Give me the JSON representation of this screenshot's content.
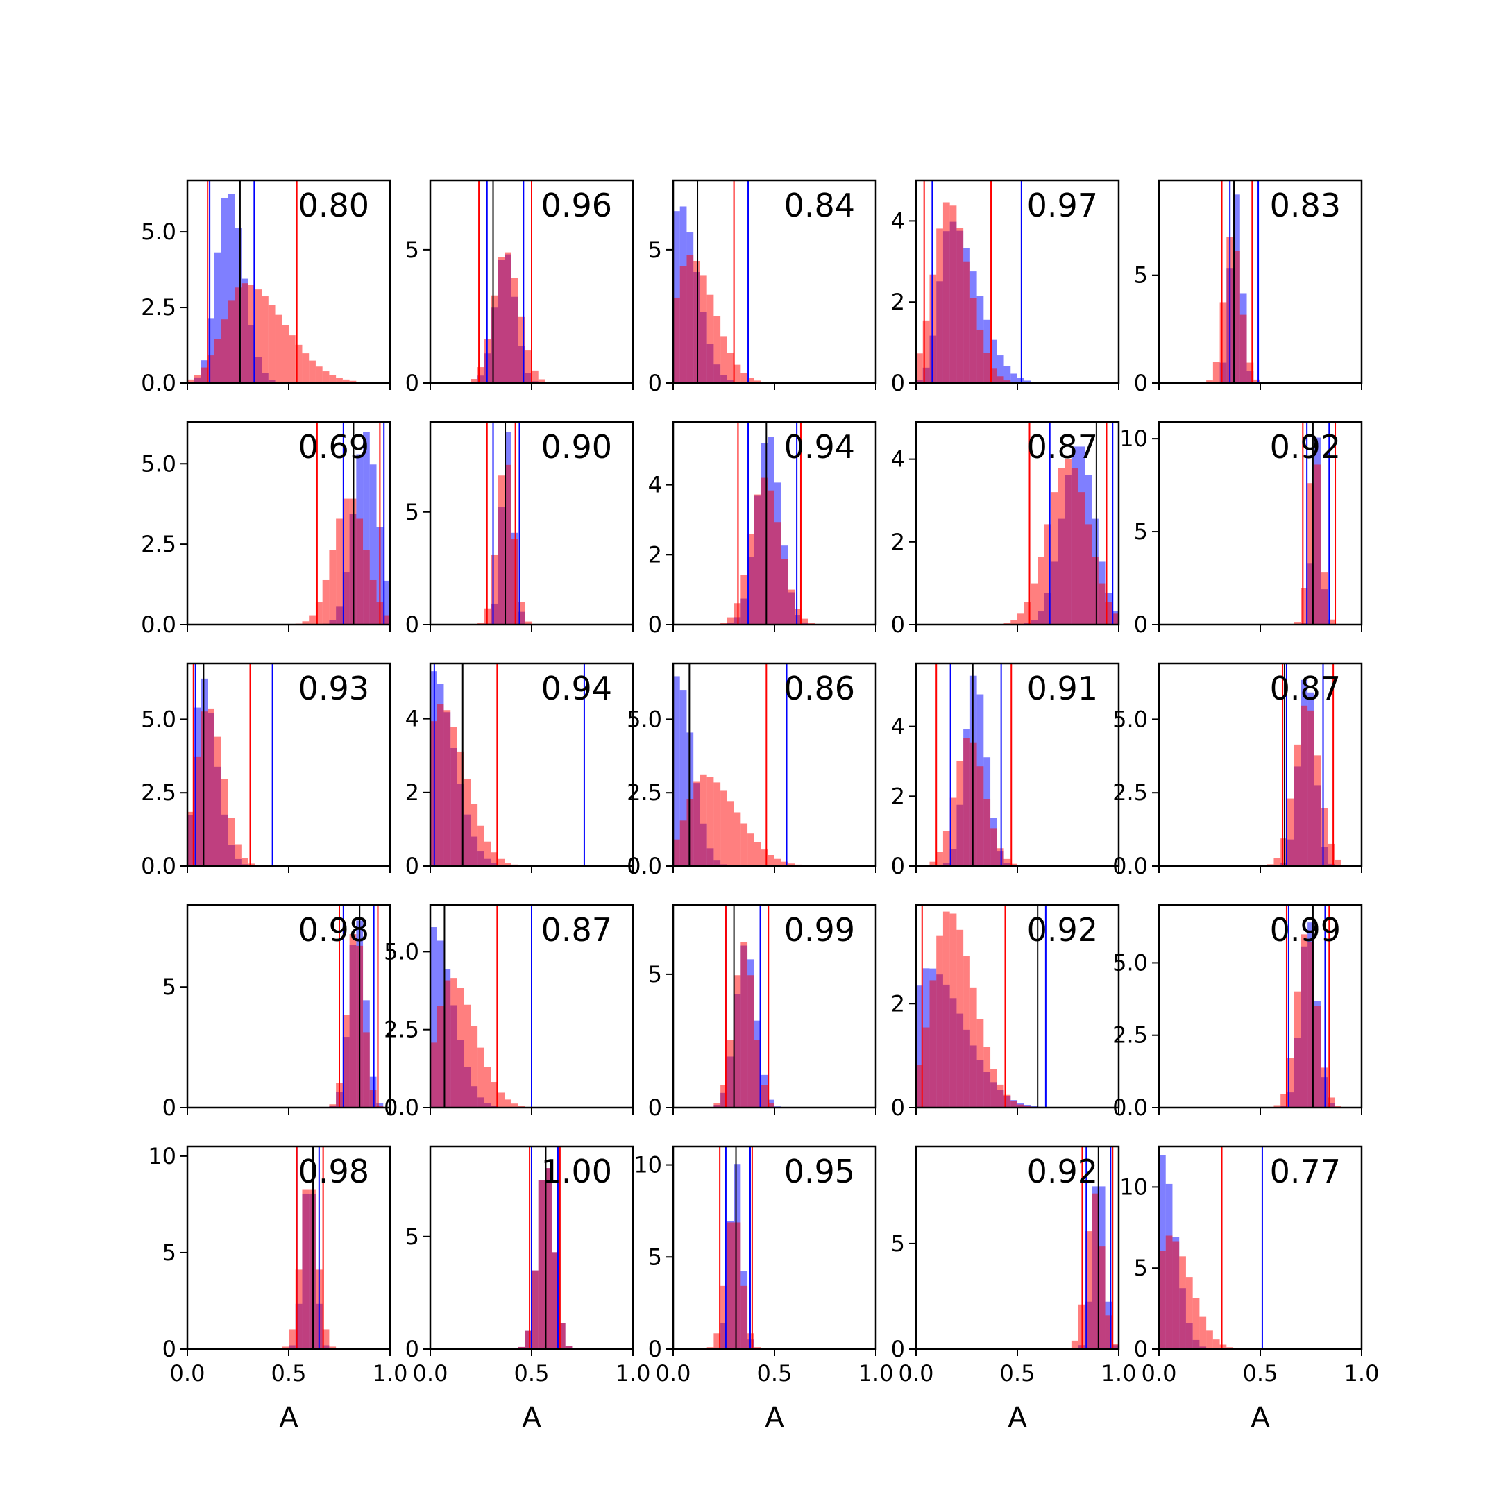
{
  "chart_data": {
    "type": "histogram-grid",
    "rows": 5,
    "cols": 5,
    "xlabel": "A",
    "xlim": [
      0,
      1
    ],
    "xticks": [
      0.0,
      0.5,
      1.0
    ],
    "xtick_labels": [
      "0.0",
      "0.5",
      "1.0"
    ],
    "colors": {
      "blue": "#0000ff",
      "red": "#ff0000",
      "black": "#000000"
    },
    "panels": [
      {
        "score": "0.80",
        "ylim": [
          0,
          6.7
        ],
        "yticks": [
          0,
          2.5,
          5
        ],
        "ytick_labels": [
          "0.0",
          "2.5",
          "5.0"
        ],
        "blue": {
          "mode": 0.2,
          "sd": 0.06,
          "skew": 0.1,
          "peak": 6.4
        },
        "red": {
          "mode": 0.28,
          "sd": 0.12,
          "skew": 0.25,
          "peak": 3.3
        },
        "lines": {
          "blue": [
            0.11,
            0.33
          ],
          "red": [
            0.1,
            0.54
          ],
          "black": 0.26
        }
      },
      {
        "score": "0.96",
        "ylim": [
          0,
          7.6
        ],
        "yticks": [
          0,
          5
        ],
        "ytick_labels": [
          "0",
          "5"
        ],
        "blue": {
          "mode": 0.37,
          "sd": 0.05,
          "skew": 0.0,
          "peak": 5.0
        },
        "red": {
          "mode": 0.37,
          "sd": 0.06,
          "skew": 0.05,
          "peak": 5.0
        },
        "lines": {
          "blue": [
            0.28,
            0.46
          ],
          "red": [
            0.24,
            0.5
          ],
          "black": 0.31
        }
      },
      {
        "score": "0.84",
        "ylim": [
          0,
          7.6
        ],
        "yticks": [
          0,
          5
        ],
        "ytick_labels": [
          "0",
          "5"
        ],
        "blue": {
          "mode": 0.03,
          "sd": 0.05,
          "skew": 0.3,
          "peak": 6.8
        },
        "red": {
          "mode": 0.08,
          "sd": 0.08,
          "skew": 0.2,
          "peak": 4.8
        },
        "lines": {
          "blue": [
            0.37
          ],
          "red": [
            0.3
          ],
          "black": 0.12
        }
      },
      {
        "score": "0.97",
        "ylim": [
          0,
          5.0
        ],
        "yticks": [
          0,
          2,
          4
        ],
        "ytick_labels": [
          "0",
          "2",
          "4"
        ],
        "blue": {
          "mode": 0.17,
          "sd": 0.07,
          "skew": 0.35,
          "peak": 4.0
        },
        "red": {
          "mode": 0.16,
          "sd": 0.08,
          "skew": 0.1,
          "peak": 4.5
        },
        "lines": {
          "blue": [
            0.08,
            0.52
          ],
          "red": [
            0.04,
            0.37
          ],
          "black": 0.0
        }
      },
      {
        "score": "0.83",
        "ylim": [
          0,
          9.4
        ],
        "yticks": [
          0,
          5
        ],
        "ytick_labels": [
          "0",
          "5"
        ],
        "blue": {
          "mode": 0.38,
          "sd": 0.03,
          "skew": 0.0,
          "peak": 8.8
        },
        "red": {
          "mode": 0.36,
          "sd": 0.04,
          "skew": 0.05,
          "peak": 7.0
        },
        "lines": {
          "blue": [
            0.35,
            0.49
          ],
          "red": [
            0.31,
            0.46
          ],
          "black": 0.37
        }
      },
      {
        "score": "0.69",
        "ylim": [
          0,
          6.3
        ],
        "yticks": [
          0,
          2.5,
          5
        ],
        "ytick_labels": [
          "0.0",
          "2.5",
          "5.0"
        ],
        "blue": {
          "mode": 0.88,
          "sd": 0.06,
          "skew": 0.0,
          "peak": 6.0
        },
        "red": {
          "mode": 0.8,
          "sd": 0.08,
          "skew": 0.0,
          "peak": 4.0
        },
        "lines": {
          "blue": [
            0.77,
            0.97
          ],
          "red": [
            0.64,
            0.95
          ],
          "black": 0.82
        }
      },
      {
        "score": "0.90",
        "ylim": [
          0,
          9.0
        ],
        "yticks": [
          0,
          5
        ],
        "ytick_labels": [
          "0",
          "5"
        ],
        "blue": {
          "mode": 0.38,
          "sd": 0.03,
          "skew": 0.0,
          "peak": 8.6
        },
        "red": {
          "mode": 0.37,
          "sd": 0.04,
          "skew": 0.0,
          "peak": 7.5
        },
        "lines": {
          "blue": [
            0.31,
            0.44
          ],
          "red": [
            0.28,
            0.42
          ],
          "black": 0.37
        }
      },
      {
        "score": "0.94",
        "ylim": [
          0,
          5.8
        ],
        "yticks": [
          0,
          2,
          4
        ],
        "ytick_labels": [
          "0",
          "2",
          "4"
        ],
        "blue": {
          "mode": 0.47,
          "sd": 0.06,
          "skew": 0.0,
          "peak": 5.5
        },
        "red": {
          "mode": 0.45,
          "sd": 0.07,
          "skew": 0.05,
          "peak": 4.2
        },
        "lines": {
          "blue": [
            0.37,
            0.61
          ],
          "red": [
            0.32,
            0.63
          ],
          "black": 0.46
        }
      },
      {
        "score": "0.87",
        "ylim": [
          0,
          4.9
        ],
        "yticks": [
          0,
          2,
          4
        ],
        "ytick_labels": [
          "0",
          "2",
          "4"
        ],
        "blue": {
          "mode": 0.8,
          "sd": 0.08,
          "skew": 0.0,
          "peak": 4.4
        },
        "red": {
          "mode": 0.75,
          "sd": 0.1,
          "skew": 0.0,
          "peak": 4.0
        },
        "lines": {
          "blue": [
            0.66,
            0.97
          ],
          "red": [
            0.56,
            0.94
          ],
          "black": 0.89
        }
      },
      {
        "score": "0.92",
        "ylim": [
          0,
          10.9
        ],
        "yticks": [
          0,
          5,
          10
        ],
        "ytick_labels": [
          "0",
          "5",
          "10"
        ],
        "blue": {
          "mode": 0.78,
          "sd": 0.02,
          "skew": 0.0,
          "peak": 10.2
        },
        "red": {
          "mode": 0.77,
          "sd": 0.03,
          "skew": 0.0,
          "peak": 9.5
        },
        "lines": {
          "blue": [
            0.73,
            0.84
          ],
          "red": [
            0.71,
            0.87
          ],
          "black": 0.76
        }
      },
      {
        "score": "0.93",
        "ylim": [
          0,
          6.9
        ],
        "yticks": [
          0,
          2.5,
          5
        ],
        "ytick_labels": [
          "0.0",
          "2.5",
          "5.0"
        ],
        "blue": {
          "mode": 0.07,
          "sd": 0.04,
          "skew": 0.3,
          "peak": 6.5
        },
        "red": {
          "mode": 0.1,
          "sd": 0.06,
          "skew": 0.1,
          "peak": 5.5
        },
        "lines": {
          "blue": [
            0.04,
            0.42
          ],
          "red": [
            0.03,
            0.31
          ],
          "black": 0.08
        }
      },
      {
        "score": "0.94",
        "ylim": [
          0,
          5.5
        ],
        "yticks": [
          0,
          2,
          4
        ],
        "ytick_labels": [
          "0",
          "2",
          "4"
        ],
        "blue": {
          "mode": 0.01,
          "sd": 0.05,
          "skew": 0.45,
          "peak": 5.3
        },
        "red": {
          "mode": 0.05,
          "sd": 0.08,
          "skew": 0.2,
          "peak": 4.4
        },
        "lines": {
          "blue": [
            0.02,
            0.76
          ],
          "red": [
            0.33
          ],
          "black": 0.16
        }
      },
      {
        "score": "0.86",
        "ylim": [
          0,
          6.9
        ],
        "yticks": [
          0,
          2.5,
          5
        ],
        "ytick_labels": [
          "0.0",
          "2.5",
          "5.0"
        ],
        "blue": {
          "mode": 0.02,
          "sd": 0.04,
          "skew": 0.35,
          "peak": 6.5
        },
        "red": {
          "mode": 0.15,
          "sd": 0.1,
          "skew": 0.25,
          "peak": 3.1
        },
        "lines": {
          "blue": [
            0.56
          ],
          "red": [
            0.46
          ],
          "black": 0.08
        }
      },
      {
        "score": "0.91",
        "ylim": [
          0,
          5.8
        ],
        "yticks": [
          0,
          2,
          4
        ],
        "ytick_labels": [
          "0",
          "2",
          "4"
        ],
        "blue": {
          "mode": 0.29,
          "sd": 0.05,
          "skew": 0.05,
          "peak": 5.5
        },
        "red": {
          "mode": 0.26,
          "sd": 0.07,
          "skew": 0.05,
          "peak": 3.7
        },
        "lines": {
          "blue": [
            0.17,
            0.42
          ],
          "red": [
            0.1,
            0.47
          ],
          "black": 0.28
        }
      },
      {
        "score": "0.87",
        "ylim": [
          0,
          6.9
        ],
        "yticks": [
          0,
          2.5,
          5
        ],
        "ytick_labels": [
          "0.0",
          "2.5",
          "5.0"
        ],
        "blue": {
          "mode": 0.73,
          "sd": 0.04,
          "skew": 0.0,
          "peak": 6.7
        },
        "red": {
          "mode": 0.73,
          "sd": 0.06,
          "skew": 0.0,
          "peak": 5.6
        },
        "lines": {
          "blue": [
            0.63,
            0.81
          ],
          "red": [
            0.61,
            0.86
          ],
          "black": 0.62
        }
      },
      {
        "score": "0.98",
        "ylim": [
          0,
          8.4
        ],
        "yticks": [
          0,
          5
        ],
        "ytick_labels": [
          "0",
          "5"
        ],
        "blue": {
          "mode": 0.84,
          "sd": 0.04,
          "skew": 0.0,
          "peak": 8.0
        },
        "red": {
          "mode": 0.83,
          "sd": 0.04,
          "skew": 0.0,
          "peak": 7.6
        },
        "lines": {
          "blue": [
            0.77,
            0.92
          ],
          "red": [
            0.75,
            0.94
          ],
          "black": 0.85
        }
      },
      {
        "score": "0.87",
        "ylim": [
          0,
          6.5
        ],
        "yticks": [
          0,
          2.5,
          5
        ],
        "ytick_labels": [
          "0.0",
          "2.5",
          "5.0"
        ],
        "blue": {
          "mode": 0.01,
          "sd": 0.05,
          "skew": 0.4,
          "peak": 5.8
        },
        "red": {
          "mode": 0.1,
          "sd": 0.08,
          "skew": 0.2,
          "peak": 4.2
        },
        "lines": {
          "blue": [
            0.5
          ],
          "red": [
            0.33
          ],
          "black": 0.07
        }
      },
      {
        "score": "0.99",
        "ylim": [
          0,
          7.6
        ],
        "yticks": [
          0,
          5
        ],
        "ytick_labels": [
          "0",
          "5"
        ],
        "blue": {
          "mode": 0.36,
          "sd": 0.05,
          "skew": 0.0,
          "peak": 6.2
        },
        "red": {
          "mode": 0.35,
          "sd": 0.05,
          "skew": 0.0,
          "peak": 6.2
        },
        "lines": {
          "blue": [
            0.26,
            0.43
          ],
          "red": [
            0.26,
            0.47
          ],
          "black": 0.3
        }
      },
      {
        "score": "0.92",
        "ylim": [
          0,
          3.9
        ],
        "yticks": [
          0,
          2
        ],
        "ytick_labels": [
          "0",
          "2"
        ],
        "blue": {
          "mode": 0.06,
          "sd": 0.1,
          "skew": 0.3,
          "peak": 2.7
        },
        "red": {
          "mode": 0.16,
          "sd": 0.09,
          "skew": 0.15,
          "peak": 3.8
        },
        "lines": {
          "blue": [
            0.64
          ],
          "red": [
            0.03,
            0.44
          ],
          "black": 0.6
        }
      },
      {
        "score": "0.99",
        "ylim": [
          0,
          7.0
        ],
        "yticks": [
          0,
          2.5,
          5
        ],
        "ytick_labels": [
          "0.0",
          "2.5",
          "5.0"
        ],
        "blue": {
          "mode": 0.74,
          "sd": 0.04,
          "skew": 0.0,
          "peak": 6.6
        },
        "red": {
          "mode": 0.73,
          "sd": 0.05,
          "skew": 0.0,
          "peak": 6.2
        },
        "lines": {
          "blue": [
            0.64,
            0.82
          ],
          "red": [
            0.63,
            0.84
          ],
          "black": 0.76
        }
      },
      {
        "score": "0.98",
        "ylim": [
          0,
          10.5
        ],
        "yticks": [
          0,
          5,
          10
        ],
        "ytick_labels": [
          "0",
          "5",
          "10"
        ],
        "blue": {
          "mode": 0.6,
          "sd": 0.03,
          "skew": 0.0,
          "peak": 9.4
        },
        "red": {
          "mode": 0.6,
          "sd": 0.04,
          "skew": 0.0,
          "peak": 9.0
        },
        "lines": {
          "blue": [
            0.54,
            0.65
          ],
          "red": [
            0.54,
            0.67
          ],
          "black": 0.62
        }
      },
      {
        "score": "1.00",
        "ylim": [
          0,
          9.0
        ],
        "yticks": [
          0,
          5
        ],
        "ytick_labels": [
          "0",
          "5"
        ],
        "blue": {
          "mode": 0.57,
          "sd": 0.04,
          "skew": 0.0,
          "peak": 8.5
        },
        "red": {
          "mode": 0.57,
          "sd": 0.04,
          "skew": 0.0,
          "peak": 8.5
        },
        "lines": {
          "blue": [
            0.5,
            0.63
          ],
          "red": [
            0.49,
            0.64
          ],
          "black": 0.57
        }
      },
      {
        "score": "0.95",
        "ylim": [
          0,
          11.0
        ],
        "yticks": [
          0,
          5,
          10
        ],
        "ytick_labels": [
          "0",
          "5",
          "10"
        ],
        "blue": {
          "mode": 0.31,
          "sd": 0.03,
          "skew": 0.0,
          "peak": 10.3
        },
        "red": {
          "mode": 0.3,
          "sd": 0.04,
          "skew": 0.0,
          "peak": 7.5
        },
        "lines": {
          "blue": [
            0.26,
            0.38
          ],
          "red": [
            0.23,
            0.39
          ],
          "black": 0.31
        }
      },
      {
        "score": "0.92",
        "ylim": [
          0,
          9.6
        ],
        "yticks": [
          0,
          5
        ],
        "ytick_labels": [
          "0",
          "5"
        ],
        "blue": {
          "mode": 0.9,
          "sd": 0.03,
          "skew": 0.0,
          "peak": 9.0
        },
        "red": {
          "mode": 0.88,
          "sd": 0.04,
          "skew": 0.0,
          "peak": 7.4
        },
        "lines": {
          "blue": [
            0.84,
            0.96
          ],
          "red": [
            0.82,
            0.97
          ],
          "black": 0.9
        }
      },
      {
        "score": "0.77",
        "ylim": [
          0,
          12.5
        ],
        "yticks": [
          0,
          5,
          10
        ],
        "ytick_labels": [
          "0",
          "5",
          "10"
        ],
        "blue": {
          "mode": 0.01,
          "sd": 0.04,
          "skew": 0.3,
          "peak": 12.0
        },
        "red": {
          "mode": 0.05,
          "sd": 0.07,
          "skew": 0.2,
          "peak": 7.0
        },
        "lines": {
          "blue": [
            0.51
          ],
          "red": [
            0.31
          ],
          "black": 0.0
        }
      }
    ]
  }
}
